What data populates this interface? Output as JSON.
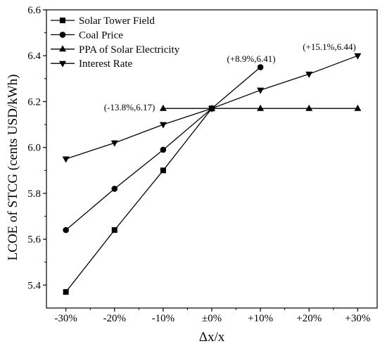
{
  "chart_data": {
    "type": "line",
    "xlabel": "Δx/x",
    "ylabel": "LCOE of STCG (cents USD/kWh)",
    "categories": [
      "-30%",
      "-20%",
      "-10%",
      "±0%",
      "+10%",
      "+20%",
      "+30%"
    ],
    "x": [
      -30,
      -20,
      -10,
      0,
      10,
      20,
      30
    ],
    "xlim": [
      -34,
      34
    ],
    "ylim": [
      5.3,
      6.6
    ],
    "yticks": [
      "5.4",
      "5.6",
      "5.8",
      "6.0",
      "6.2",
      "6.4",
      "6.6"
    ],
    "grid": false,
    "legend": "top-left",
    "color": "#000000",
    "series": [
      {
        "name": "Solar Tower Field",
        "marker": "square",
        "x": [
          -30,
          -20,
          -10,
          0
        ],
        "values": [
          5.37,
          5.64,
          5.9,
          6.17
        ]
      },
      {
        "name": "Coal Price",
        "marker": "circle",
        "x": [
          -30,
          -20,
          -10,
          0,
          10
        ],
        "values": [
          5.64,
          5.82,
          5.99,
          6.17,
          6.35
        ]
      },
      {
        "name": "PPA of Solar Electricity",
        "marker": "triangle-up",
        "x": [
          -10,
          0,
          10,
          20,
          30
        ],
        "values": [
          6.17,
          6.17,
          6.17,
          6.17,
          6.17
        ]
      },
      {
        "name": "Interest Rate",
        "marker": "triangle-down",
        "x": [
          -30,
          -20,
          -10,
          0,
          10,
          20,
          30
        ],
        "values": [
          5.95,
          6.02,
          6.1,
          6.17,
          6.25,
          6.32,
          6.4
        ]
      }
    ],
    "annotations": [
      "(-13.8%,6.17)",
      "(+8.9%,6.41)",
      "(+15.1%,6.44)"
    ]
  }
}
